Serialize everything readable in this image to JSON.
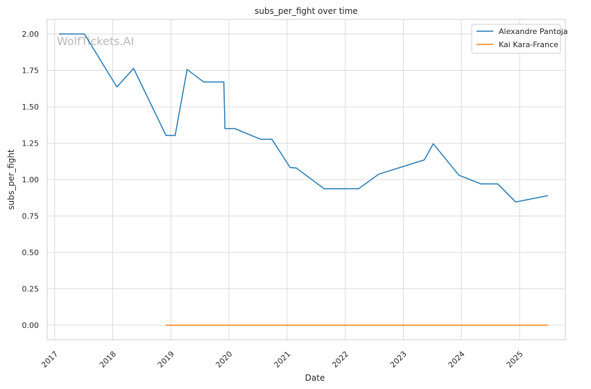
{
  "watermark": "WolfTickets.AI",
  "chart_data": {
    "type": "line",
    "title": "subs_per_fight over time",
    "xlabel": "Date",
    "ylabel": "subs_per_fight",
    "x_type": "date",
    "xlim": [
      "2016-11-15",
      "2025-10-15"
    ],
    "ylim": [
      -0.1,
      2.1
    ],
    "x_ticks": [
      {
        "date": "2017-01-01",
        "label": "2017"
      },
      {
        "date": "2018-01-01",
        "label": "2018"
      },
      {
        "date": "2019-01-01",
        "label": "2019"
      },
      {
        "date": "2020-01-01",
        "label": "2020"
      },
      {
        "date": "2021-01-01",
        "label": "2021"
      },
      {
        "date": "2022-01-01",
        "label": "2022"
      },
      {
        "date": "2023-01-01",
        "label": "2023"
      },
      {
        "date": "2024-01-01",
        "label": "2024"
      },
      {
        "date": "2025-01-01",
        "label": "2025"
      }
    ],
    "y_ticks": [
      {
        "value": 0.0,
        "label": "0.00"
      },
      {
        "value": 0.25,
        "label": "0.25"
      },
      {
        "value": 0.5,
        "label": "0.50"
      },
      {
        "value": 0.75,
        "label": "0.75"
      },
      {
        "value": 1.0,
        "label": "1.00"
      },
      {
        "value": 1.25,
        "label": "1.25"
      },
      {
        "value": 1.5,
        "label": "1.50"
      },
      {
        "value": 1.75,
        "label": "1.75"
      },
      {
        "value": 2.0,
        "label": "2.00"
      }
    ],
    "grid": true,
    "legend_position": "top-right",
    "series": [
      {
        "name": "Alexandre Pantoja",
        "color": "#1f77b4",
        "points": [
          {
            "x": "2017-01-28",
            "y": 2.0
          },
          {
            "x": "2017-07-07",
            "y": 2.0
          },
          {
            "x": "2018-01-27",
            "y": 1.636
          },
          {
            "x": "2018-05-12",
            "y": 1.764
          },
          {
            "x": "2018-12-02",
            "y": 1.303
          },
          {
            "x": "2019-01-28",
            "y": 1.303
          },
          {
            "x": "2019-04-13",
            "y": 1.756
          },
          {
            "x": "2019-07-27",
            "y": 1.67
          },
          {
            "x": "2019-11-30",
            "y": 1.67
          },
          {
            "x": "2019-12-07",
            "y": 1.35
          },
          {
            "x": "2020-02-08",
            "y": 1.35
          },
          {
            "x": "2020-07-18",
            "y": 1.277
          },
          {
            "x": "2020-09-27",
            "y": 1.277
          },
          {
            "x": "2021-01-20",
            "y": 1.083
          },
          {
            "x": "2021-02-27",
            "y": 1.08
          },
          {
            "x": "2021-08-21",
            "y": 0.937
          },
          {
            "x": "2022-03-26",
            "y": 0.937
          },
          {
            "x": "2022-07-30",
            "y": 1.037
          },
          {
            "x": "2023-05-13",
            "y": 1.135
          },
          {
            "x": "2023-07-08",
            "y": 1.246
          },
          {
            "x": "2023-12-16",
            "y": 1.03
          },
          {
            "x": "2024-05-04",
            "y": 0.97
          },
          {
            "x": "2024-08-17",
            "y": 0.97
          },
          {
            "x": "2024-12-07",
            "y": 0.846
          },
          {
            "x": "2025-06-28",
            "y": 0.89
          }
        ]
      },
      {
        "name": "Kai Kara-France",
        "color": "#ff7f0e",
        "points": [
          {
            "x": "2018-11-30",
            "y": 0.0
          },
          {
            "x": "2025-06-28",
            "y": 0.0
          }
        ]
      }
    ]
  }
}
